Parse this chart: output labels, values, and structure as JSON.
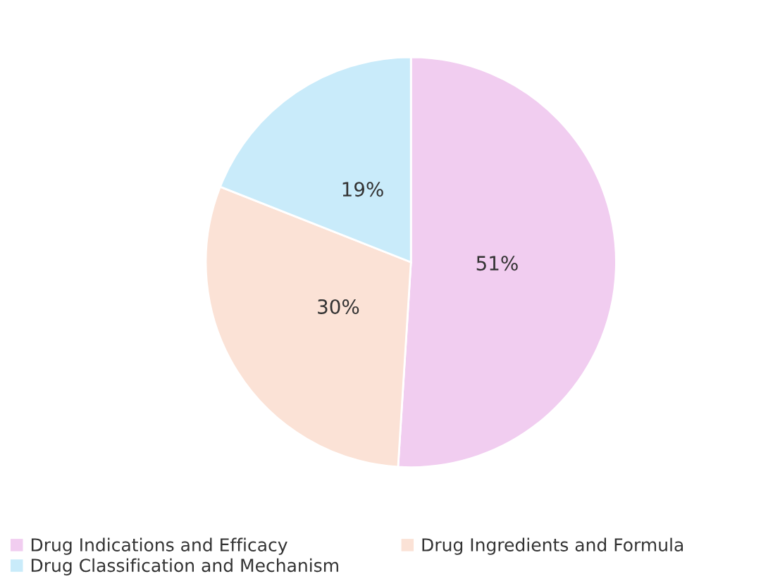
{
  "chart_data": {
    "type": "pie",
    "categories": [
      "Drug Indications and Efficacy",
      "Drug Ingredients and Formula",
      "Drug Classification and Mechanism"
    ],
    "values": [
      51,
      30,
      19
    ],
    "colors": [
      "#f1cdf0",
      "#fbe2d6",
      "#c9ebfa"
    ],
    "value_labels": [
      "51%",
      "30%",
      "19%"
    ],
    "legend": "bottom"
  }
}
